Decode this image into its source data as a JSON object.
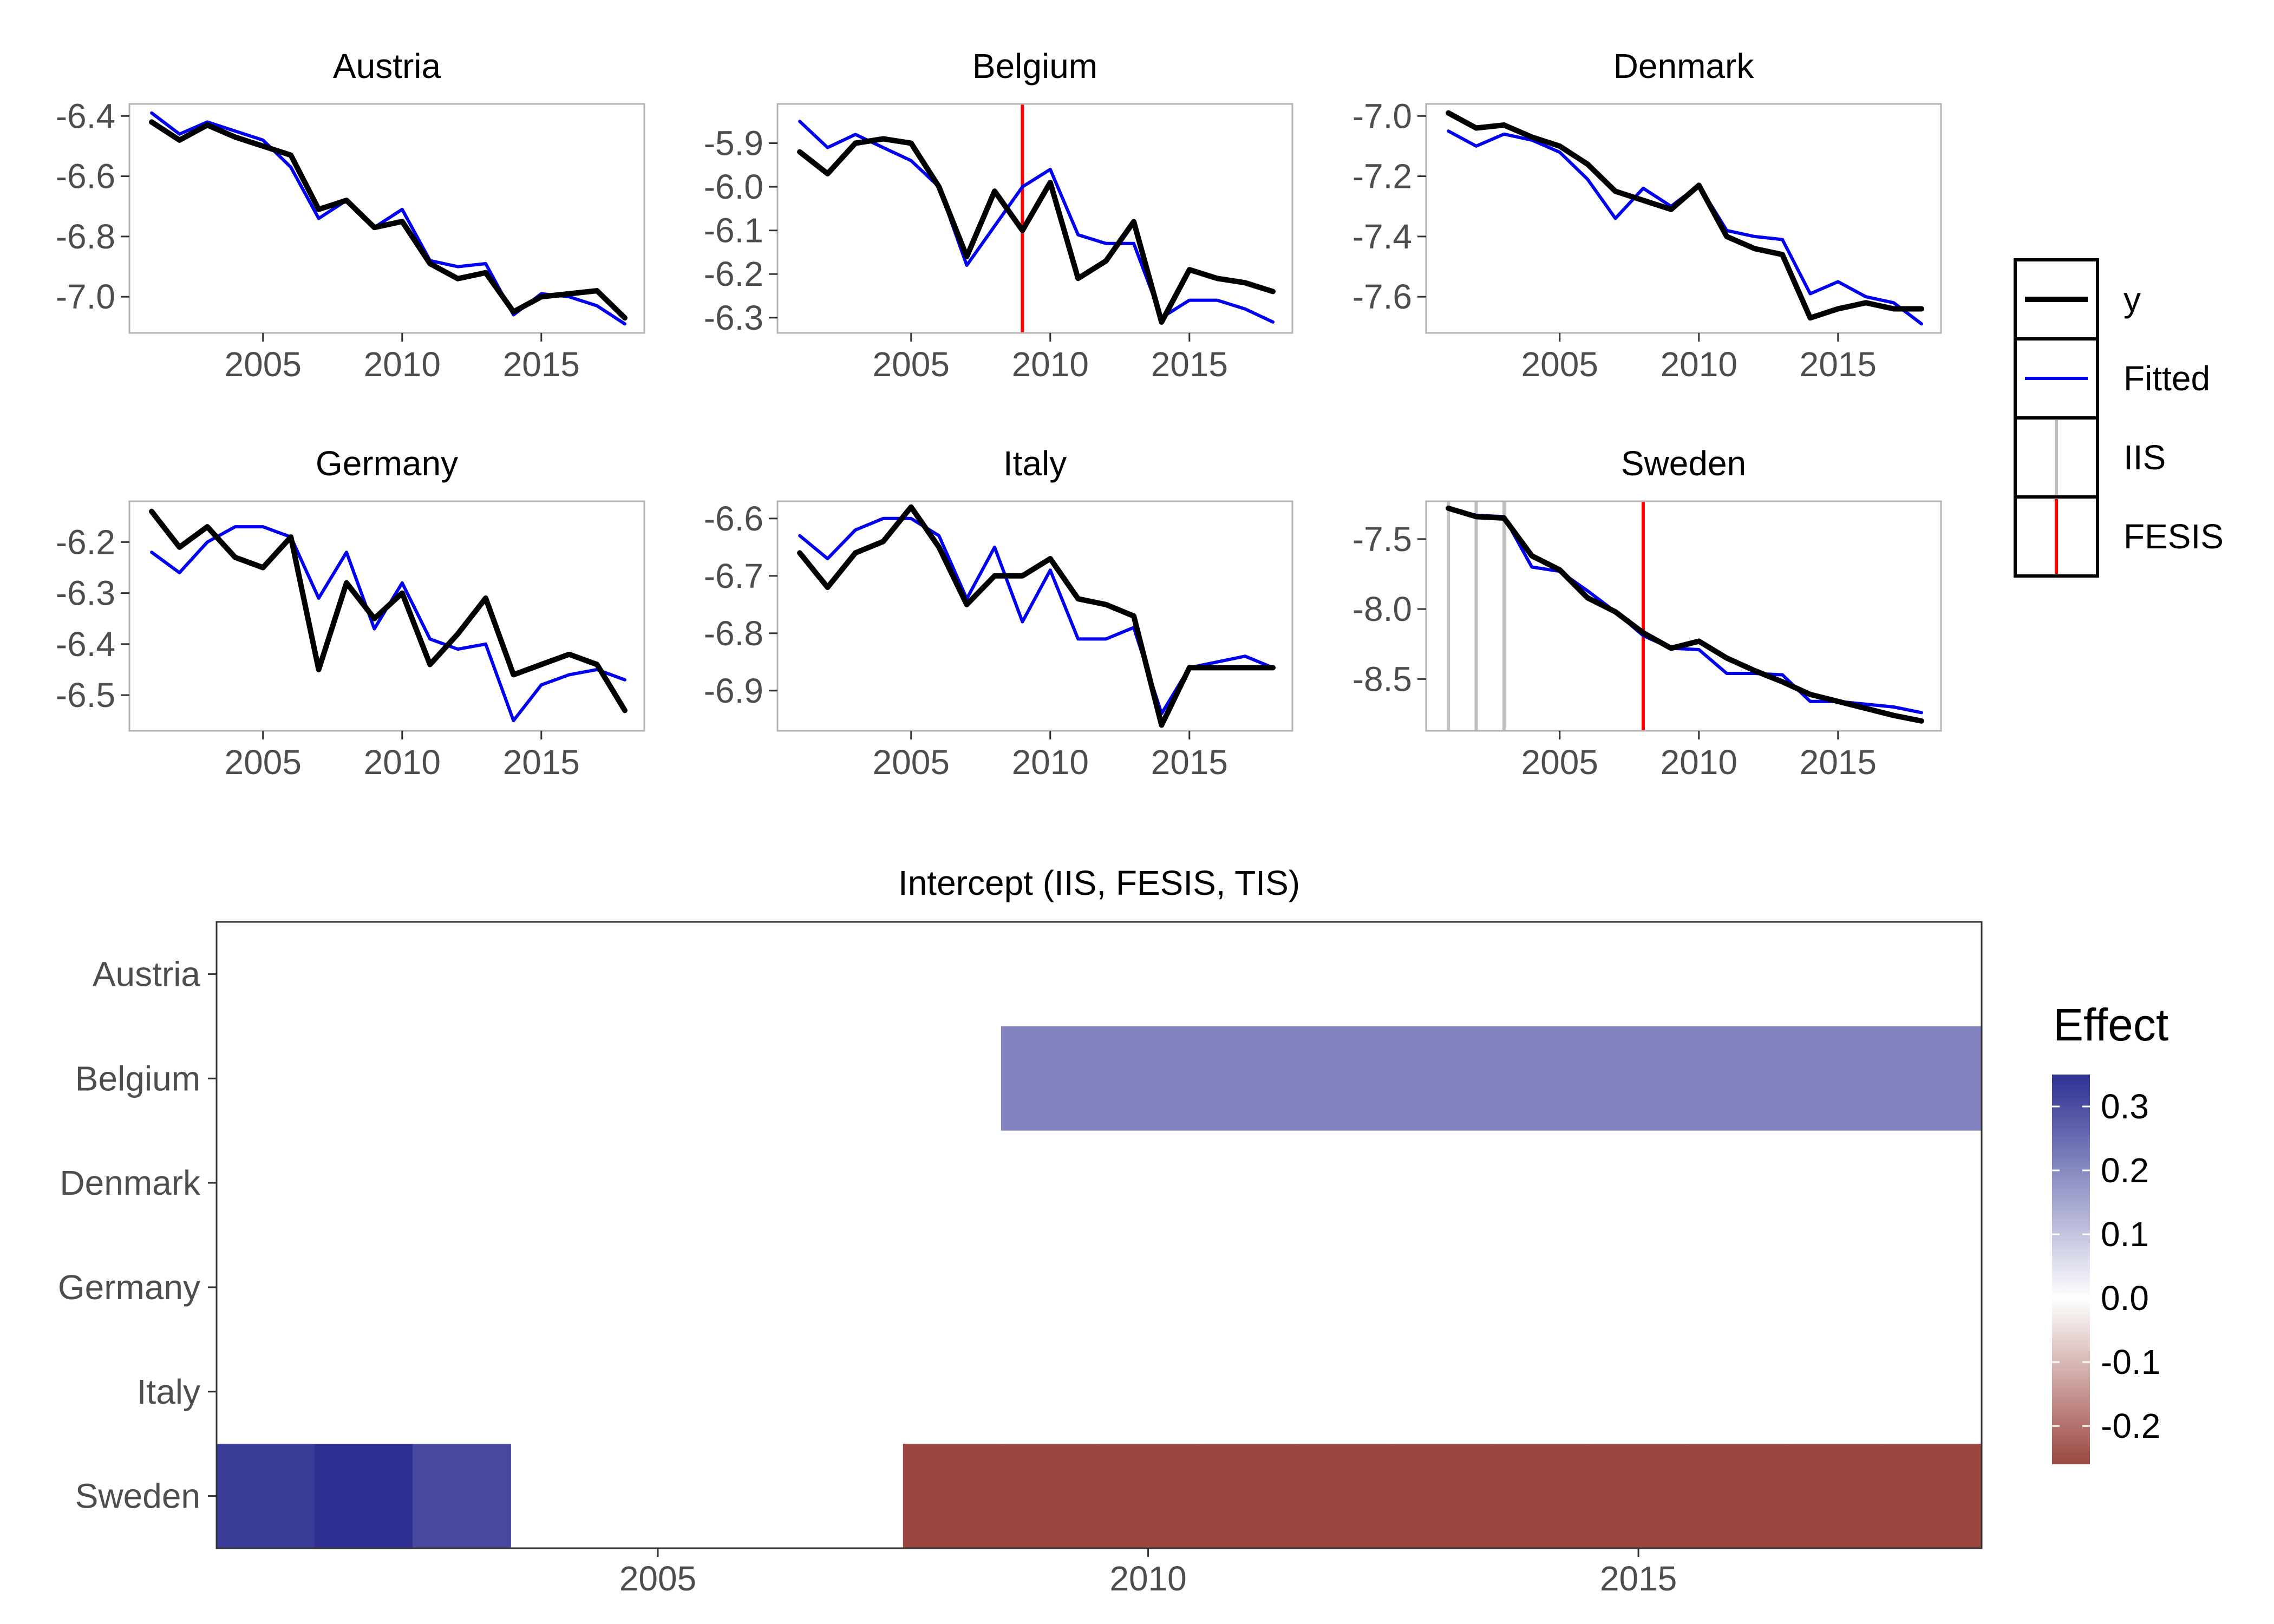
{
  "figure": {
    "legend": {
      "items": [
        {
          "label": "y",
          "kind": "line",
          "color": "#000000"
        },
        {
          "label": "Fitted",
          "kind": "line",
          "color": "#0000ee"
        },
        {
          "label": "IIS",
          "kind": "vline",
          "color": "#bebebe"
        },
        {
          "label": "FESIS",
          "kind": "vline",
          "color": "#ff0000"
        }
      ]
    },
    "colorbar": {
      "title": "Effect",
      "ticks": [
        "0.3",
        "0.2",
        "0.1",
        "0.0",
        "-0.1",
        "-0.2"
      ],
      "high_color": "#2e3192",
      "mid_color": "#ffffff",
      "low_color": "#9b4741"
    }
  },
  "chart_data": [
    {
      "type": "line",
      "title": "Austria",
      "x": [
        2001,
        2002,
        2003,
        2004,
        2005,
        2006,
        2007,
        2008,
        2009,
        2010,
        2011,
        2012,
        2013,
        2014,
        2015,
        2016,
        2017,
        2018
      ],
      "xlim": [
        2000.2,
        2018.7
      ],
      "x_ticks": [
        "2005",
        "2010",
        "2015"
      ],
      "ylim": [
        -7.12,
        -6.36
      ],
      "y_ticks": [
        "-6.4",
        "-6.6",
        "-6.8",
        "-7.0"
      ],
      "series": [
        {
          "name": "y",
          "color": "#000000",
          "values": [
            -6.42,
            -6.48,
            -6.43,
            -6.47,
            -6.5,
            -6.53,
            -6.71,
            -6.68,
            -6.77,
            -6.75,
            -6.89,
            -6.94,
            -6.92,
            -7.05,
            -7.0,
            -6.99,
            -6.98,
            -7.07
          ]
        },
        {
          "name": "Fitted",
          "color": "#0000ee",
          "values": [
            -6.39,
            -6.46,
            -6.42,
            -6.45,
            -6.48,
            -6.57,
            -6.74,
            -6.68,
            -6.77,
            -6.71,
            -6.88,
            -6.9,
            -6.89,
            -7.06,
            -6.99,
            -7.0,
            -7.03,
            -7.09
          ]
        }
      ],
      "indicators": []
    },
    {
      "type": "line",
      "title": "Belgium",
      "x": [
        2001,
        2002,
        2003,
        2004,
        2005,
        2006,
        2007,
        2008,
        2009,
        2010,
        2011,
        2012,
        2013,
        2014,
        2015,
        2016,
        2017,
        2018
      ],
      "xlim": [
        2000.2,
        2018.7
      ],
      "x_ticks": [
        "2005",
        "2010",
        "2015"
      ],
      "ylim": [
        -6.335,
        -5.81
      ],
      "y_ticks": [
        "-5.9",
        "-6.0",
        "-6.1",
        "-6.2",
        "-6.3"
      ],
      "series": [
        {
          "name": "y",
          "color": "#000000",
          "values": [
            -5.92,
            -5.97,
            -5.9,
            -5.89,
            -5.9,
            -6.0,
            -6.16,
            -6.01,
            -6.1,
            -5.99,
            -6.21,
            -6.17,
            -6.08,
            -6.31,
            -6.19,
            -6.21,
            -6.22,
            -6.24
          ]
        },
        {
          "name": "Fitted",
          "color": "#0000ee",
          "values": [
            -5.85,
            -5.91,
            -5.88,
            -5.91,
            -5.94,
            -6.0,
            -6.18,
            -6.09,
            -6.0,
            -5.96,
            -6.11,
            -6.13,
            -6.13,
            -6.3,
            -6.26,
            -6.26,
            -6.28,
            -6.31
          ]
        }
      ],
      "indicators": [
        {
          "type": "FESIS",
          "x": 2009
        }
      ]
    },
    {
      "type": "line",
      "title": "Denmark",
      "x": [
        2001,
        2002,
        2003,
        2004,
        2005,
        2006,
        2007,
        2008,
        2009,
        2010,
        2011,
        2012,
        2013,
        2014,
        2015,
        2016,
        2017,
        2018
      ],
      "xlim": [
        2000.2,
        2018.7
      ],
      "x_ticks": [
        "2005",
        "2010",
        "2015"
      ],
      "ylim": [
        -7.72,
        -6.96
      ],
      "y_ticks": [
        "-7.0",
        "-7.2",
        "-7.4",
        "-7.6"
      ],
      "series": [
        {
          "name": "y",
          "color": "#000000",
          "values": [
            -6.99,
            -7.04,
            -7.03,
            -7.07,
            -7.1,
            -7.16,
            -7.25,
            -7.28,
            -7.31,
            -7.23,
            -7.4,
            -7.44,
            -7.46,
            -7.67,
            -7.64,
            -7.62,
            -7.64,
            -7.64
          ]
        },
        {
          "name": "Fitted",
          "color": "#0000ee",
          "values": [
            -7.05,
            -7.1,
            -7.06,
            -7.08,
            -7.12,
            -7.21,
            -7.34,
            -7.24,
            -7.3,
            -7.23,
            -7.38,
            -7.4,
            -7.41,
            -7.59,
            -7.55,
            -7.6,
            -7.62,
            -7.69
          ]
        }
      ],
      "indicators": []
    },
    {
      "type": "line",
      "title": "Germany",
      "x": [
        2001,
        2002,
        2003,
        2004,
        2005,
        2006,
        2007,
        2008,
        2009,
        2010,
        2011,
        2012,
        2013,
        2014,
        2015,
        2016,
        2017,
        2018
      ],
      "xlim": [
        2000.2,
        2018.7
      ],
      "x_ticks": [
        "2005",
        "2010",
        "2015"
      ],
      "ylim": [
        -6.57,
        -6.12
      ],
      "y_ticks": [
        "-6.2",
        "-6.3",
        "-6.4",
        "-6.5"
      ],
      "series": [
        {
          "name": "y",
          "color": "#000000",
          "values": [
            -6.14,
            -6.21,
            -6.17,
            -6.23,
            -6.25,
            -6.19,
            -6.45,
            -6.28,
            -6.35,
            -6.3,
            -6.44,
            -6.38,
            -6.31,
            -6.46,
            -6.44,
            -6.42,
            -6.44,
            -6.53
          ]
        },
        {
          "name": "Fitted",
          "color": "#0000ee",
          "values": [
            -6.22,
            -6.26,
            -6.2,
            -6.17,
            -6.17,
            -6.19,
            -6.31,
            -6.22,
            -6.37,
            -6.28,
            -6.39,
            -6.41,
            -6.4,
            -6.55,
            -6.48,
            -6.46,
            -6.45,
            -6.47
          ]
        }
      ],
      "indicators": []
    },
    {
      "type": "line",
      "title": "Italy",
      "x": [
        2001,
        2002,
        2003,
        2004,
        2005,
        2006,
        2007,
        2008,
        2009,
        2010,
        2011,
        2012,
        2013,
        2014,
        2015,
        2016,
        2017,
        2018
      ],
      "xlim": [
        2000.2,
        2018.7
      ],
      "x_ticks": [
        "2005",
        "2010",
        "2015"
      ],
      "ylim": [
        -6.97,
        -6.57
      ],
      "y_ticks": [
        "-6.6",
        "-6.7",
        "-6.8",
        "-6.9"
      ],
      "series": [
        {
          "name": "y",
          "color": "#000000",
          "values": [
            -6.66,
            -6.72,
            -6.66,
            -6.64,
            -6.58,
            -6.65,
            -6.75,
            -6.7,
            -6.7,
            -6.67,
            -6.74,
            -6.75,
            -6.77,
            -6.96,
            -6.86,
            -6.86,
            -6.86,
            -6.86
          ]
        },
        {
          "name": "Fitted",
          "color": "#0000ee",
          "values": [
            -6.63,
            -6.67,
            -6.62,
            -6.6,
            -6.6,
            -6.63,
            -6.74,
            -6.65,
            -6.78,
            -6.69,
            -6.81,
            -6.81,
            -6.79,
            -6.94,
            -6.86,
            -6.85,
            -6.84,
            -6.86
          ]
        }
      ],
      "indicators": []
    },
    {
      "type": "line",
      "title": "Sweden",
      "x": [
        2001,
        2002,
        2003,
        2004,
        2005,
        2006,
        2007,
        2008,
        2009,
        2010,
        2011,
        2012,
        2013,
        2014,
        2015,
        2016,
        2017,
        2018
      ],
      "xlim": [
        2000.2,
        2018.7
      ],
      "x_ticks": [
        "2005",
        "2010",
        "2015"
      ],
      "ylim": [
        -8.87,
        -7.23
      ],
      "y_ticks": [
        "-7.5",
        "-8.0",
        "-8.5"
      ],
      "series": [
        {
          "name": "y",
          "color": "#000000",
          "values": [
            -7.28,
            -7.34,
            -7.35,
            -7.62,
            -7.72,
            -7.92,
            -8.02,
            -8.17,
            -8.28,
            -8.23,
            -8.35,
            -8.44,
            -8.52,
            -8.61,
            -8.66,
            -8.71,
            -8.76,
            -8.8
          ]
        },
        {
          "name": "Fitted",
          "color": "#0000ee",
          "values": [
            -7.28,
            -7.33,
            -7.34,
            -7.7,
            -7.73,
            -7.87,
            -8.02,
            -8.19,
            -8.28,
            -8.29,
            -8.46,
            -8.46,
            -8.47,
            -8.66,
            -8.66,
            -8.68,
            -8.7,
            -8.74
          ]
        }
      ],
      "indicators": [
        {
          "type": "IIS",
          "x": 2001
        },
        {
          "type": "IIS",
          "x": 2002
        },
        {
          "type": "IIS",
          "x": 2003
        },
        {
          "type": "FESIS",
          "x": 2008
        }
      ]
    },
    {
      "type": "heatmap",
      "title": "Intercept (IIS, FESIS, TIS)",
      "rows": [
        "Austria",
        "Belgium",
        "Denmark",
        "Germany",
        "Italy",
        "Sweden"
      ],
      "x": [
        2001,
        2002,
        2003,
        2004,
        2005,
        2006,
        2007,
        2008,
        2009,
        2010,
        2011,
        2012,
        2013,
        2014,
        2015,
        2016,
        2017,
        2018
      ],
      "xlim": [
        2000.5,
        2018.5
      ],
      "x_ticks": [
        "2005",
        "2010",
        "2015"
      ],
      "color_range": [
        -0.26,
        0.35
      ],
      "values": [
        [
          0,
          0,
          0,
          0,
          0,
          0,
          0,
          0,
          0,
          0,
          0,
          0,
          0,
          0,
          0,
          0,
          0,
          0
        ],
        [
          0,
          0,
          0,
          0,
          0,
          0,
          0,
          0,
          0.21,
          0.21,
          0.21,
          0.21,
          0.21,
          0.21,
          0.21,
          0.21,
          0.21,
          0.21
        ],
        [
          0,
          0,
          0,
          0,
          0,
          0,
          0,
          0,
          0,
          0,
          0,
          0,
          0,
          0,
          0,
          0,
          0,
          0
        ],
        [
          0,
          0,
          0,
          0,
          0,
          0,
          0,
          0,
          0,
          0,
          0,
          0,
          0,
          0,
          0,
          0,
          0,
          0
        ],
        [
          0,
          0,
          0,
          0,
          0,
          0,
          0,
          0,
          0,
          0,
          0,
          0,
          0,
          0,
          0,
          0,
          0,
          0
        ],
        [
          0.33,
          0.35,
          0.31,
          0,
          0,
          0,
          0,
          -0.26,
          -0.26,
          -0.26,
          -0.26,
          -0.26,
          -0.26,
          -0.26,
          -0.26,
          -0.26,
          -0.26,
          -0.26
        ]
      ]
    }
  ]
}
